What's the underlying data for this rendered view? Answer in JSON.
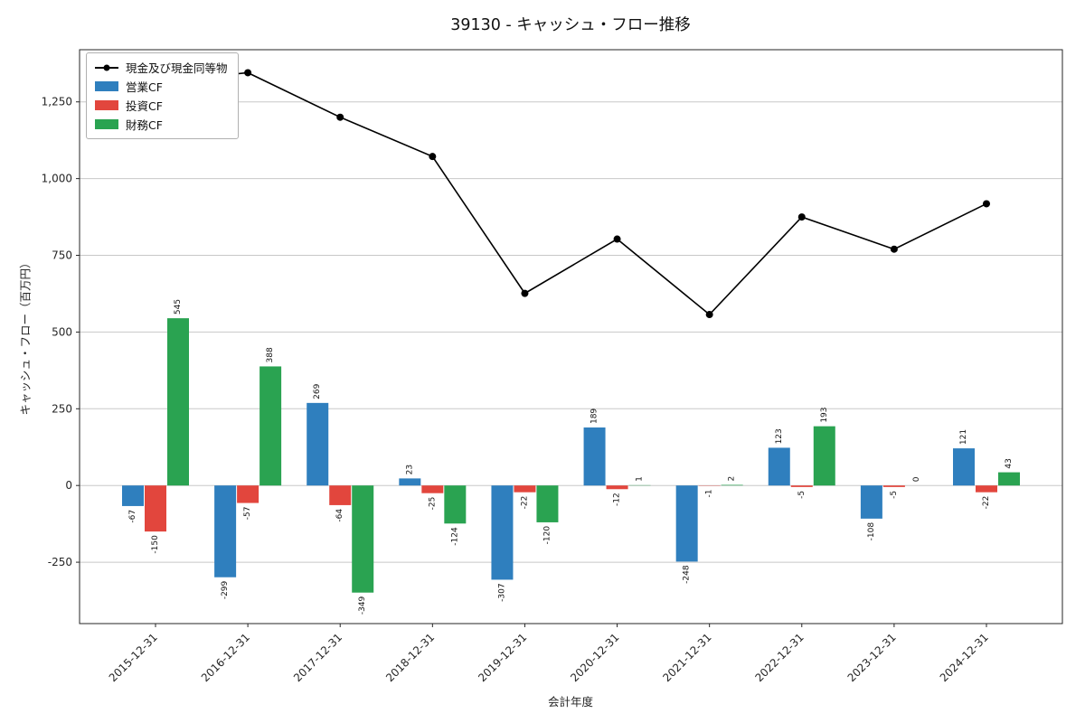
{
  "chart_data": {
    "type": "bar+line",
    "title": "39130 - キャッシュ・フロー推移",
    "xlabel": "会計年度",
    "ylabel": "キャッシュ・フロー（百万円）",
    "categories": [
      "2015-12-31",
      "2016-12-31",
      "2017-12-31",
      "2018-12-31",
      "2019-12-31",
      "2020-12-31",
      "2021-12-31",
      "2022-12-31",
      "2023-12-31",
      "2024-12-31"
    ],
    "bar_series": [
      {
        "key": "operating-cf",
        "name": "営業CF",
        "color": "#2f7fbe",
        "values": [
          -67,
          -299,
          269,
          23,
          -307,
          189,
          -248,
          123,
          -108,
          121
        ]
      },
      {
        "key": "investing-cf",
        "name": "投資CF",
        "color": "#e2463d",
        "values": [
          -150,
          -57,
          -64,
          -25,
          -22,
          -12,
          -1,
          -5,
          -5,
          -22
        ]
      },
      {
        "key": "financing-cf",
        "name": "財務CF",
        "color": "#2aa351",
        "values": [
          545,
          388,
          -349,
          -124,
          -120,
          1,
          2,
          193,
          0,
          43
        ]
      }
    ],
    "line_series": {
      "key": "cash-and-equivalents",
      "name": "現金及び現金同等物",
      "color": "#000000",
      "values": [
        1315,
        1345,
        1200,
        1072,
        626,
        803,
        557,
        875,
        770,
        918
      ]
    },
    "yticks": [
      -250,
      0,
      250,
      500,
      750,
      1000,
      1250
    ],
    "ylim": [
      -450,
      1420
    ],
    "grid": true,
    "legend_position": "upper left",
    "style": {
      "grid_color": "#c8c8c8",
      "axis_color": "#262626",
      "label_color": "#111111",
      "background": "#ffffff"
    }
  }
}
